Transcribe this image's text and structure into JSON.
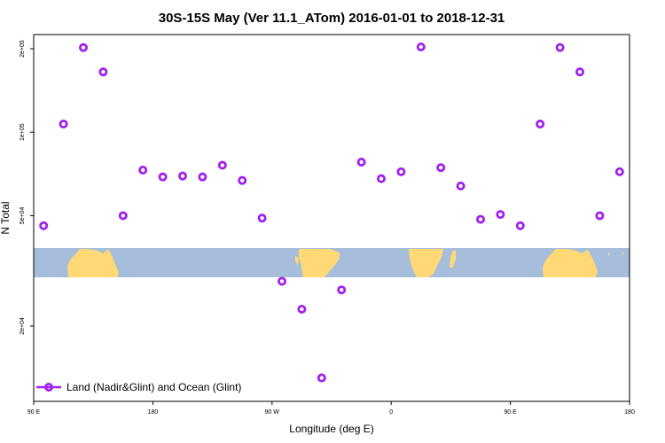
{
  "chart_data": {
    "type": "scatter",
    "title": "30S-15S May (Ver 11.1_ATom)   2016-01-01 to 2018-12-31",
    "xlabel": "Longitude (deg E)",
    "ylabel": "N Total",
    "x_axis": {
      "range": [
        90,
        540
      ],
      "ticks": [
        {
          "value": 90,
          "label": "90 E"
        },
        {
          "value": 180,
          "label": "180"
        },
        {
          "value": 270,
          "label": "90 W"
        },
        {
          "value": 360,
          "label": "0"
        },
        {
          "value": 450,
          "label": "90 E"
        },
        {
          "value": 540,
          "label": "180"
        }
      ]
    },
    "y_axis": {
      "scale": "log",
      "range": [
        10700,
        225000
      ],
      "ticks": [
        {
          "value": 20000,
          "label": "2e+04"
        },
        {
          "value": 50000,
          "label": "5e+04"
        },
        {
          "value": 100000,
          "label": "1e+05"
        },
        {
          "value": 200000,
          "label": "2e+05"
        }
      ]
    },
    "grid": false,
    "legend": {
      "position": "bottom-left"
    },
    "background_map": {
      "description": "world land/ocean strip for 30S-15S",
      "ocean_color": "#A6BDDB",
      "land_color": "#FED976"
    },
    "series": [
      {
        "name": "Land (Nadir&Glint) and Ocean (Glint)",
        "color": "#A020F0",
        "x": [
          97.5,
          112.5,
          127.5,
          142.5,
          157.5,
          172.5,
          187.5,
          202.5,
          217.5,
          232.5,
          247.5,
          262.5,
          277.5,
          292.5,
          307.5,
          322.5,
          337.5,
          352.5,
          367.5,
          382.5,
          397.5,
          412.5,
          427.5,
          442.5,
          457.5,
          472.5,
          487.5,
          502.5,
          517.5,
          532.5
        ],
        "y": [
          46000,
          107000,
          202000,
          165000,
          50000,
          73000,
          69000,
          69500,
          69000,
          76000,
          67000,
          49000,
          29000,
          23000,
          13000,
          27000,
          78000,
          68000,
          72000,
          203000,
          74500,
          64000,
          48500,
          50500,
          46000,
          107000,
          202000,
          165000,
          50000,
          72000
        ]
      }
    ]
  }
}
